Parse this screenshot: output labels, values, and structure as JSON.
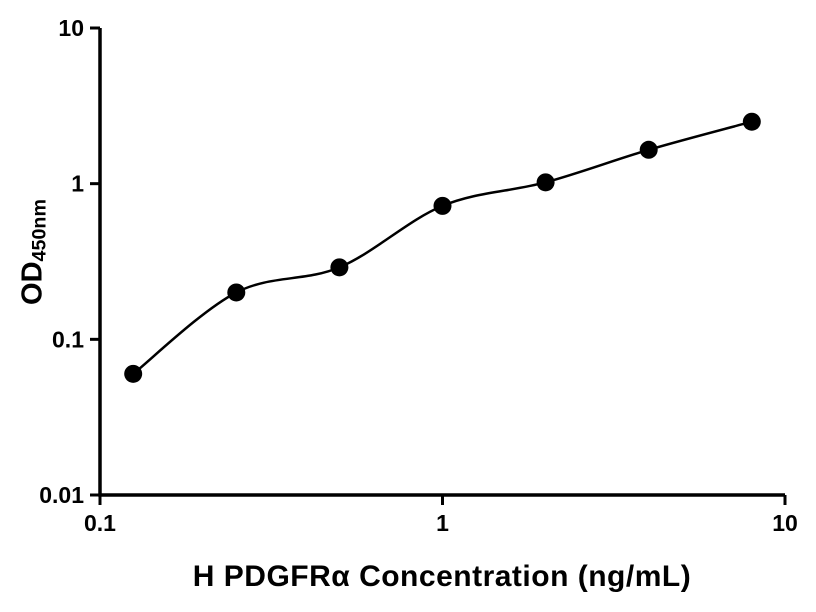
{
  "figure": {
    "background": "#ffffff"
  },
  "chart_data": {
    "type": "scatter",
    "title": "",
    "x": [
      0.125,
      0.25,
      0.5,
      1,
      2,
      4,
      8
    ],
    "y": [
      0.06,
      0.2,
      0.29,
      0.72,
      1.02,
      1.65,
      2.5
    ],
    "xlabel": "H PDGFRα Concentration (ng/mL)",
    "ylabel": "OD",
    "ylabel_subscript": "450nm",
    "x_scale": "log",
    "y_scale": "log",
    "xlim": [
      0.1,
      10
    ],
    "ylim": [
      0.01,
      10
    ],
    "x_ticks": [
      "0.1",
      "1",
      "10"
    ],
    "y_ticks": [
      "0.01",
      "0.1",
      "1",
      "10"
    ],
    "grid": false,
    "legend": "none",
    "marker": {
      "shape": "circle",
      "color": "#000000",
      "radius": 9
    },
    "line": {
      "color": "#000000",
      "width": 2.5,
      "style": "smooth-fit"
    },
    "axis_color": "#000000",
    "text_color": "#000000",
    "tick_font_size": 23
  }
}
